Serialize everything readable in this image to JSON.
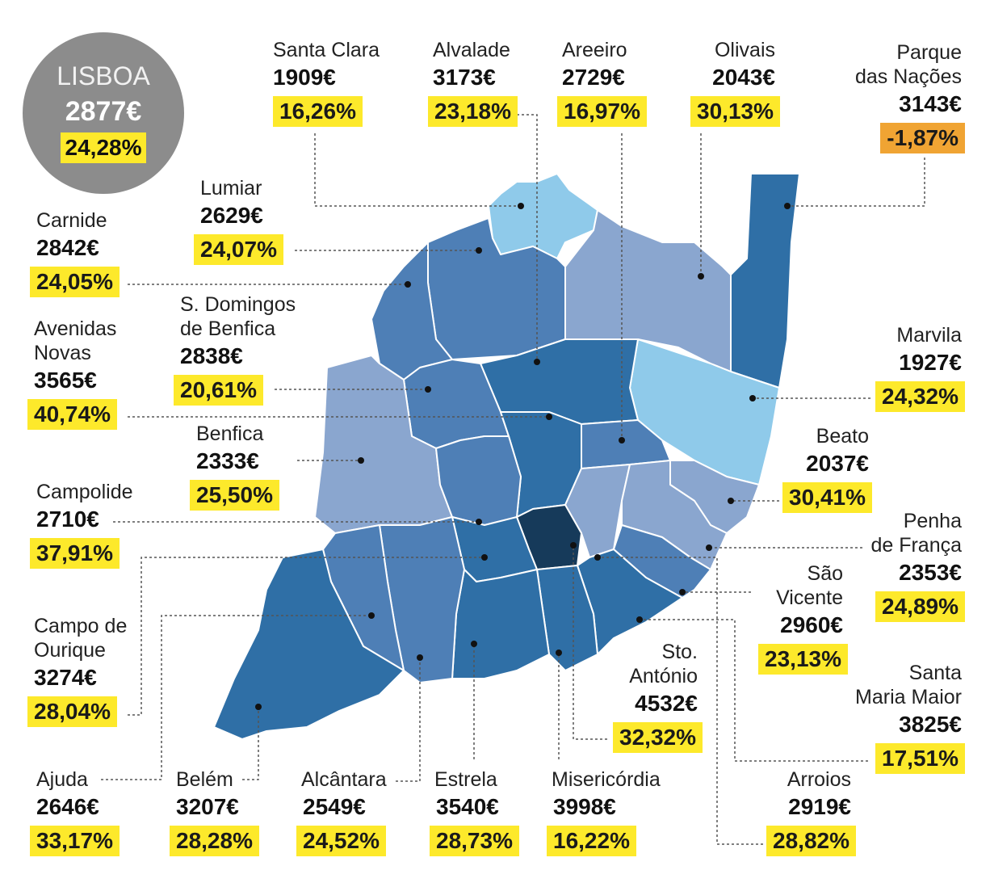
{
  "city": {
    "name": "LISBOA",
    "price": "2877€",
    "change": "24,28%"
  },
  "colors": {
    "darkest": "#163a5a",
    "dark": "#2f6fa6",
    "mid": "#4e7fb6",
    "light_mid": "#8aa6cf",
    "light": "#8fcaea",
    "highlight": "#fde92b",
    "negative": "#f0a433",
    "border": "#ffffff"
  },
  "parishes": [
    {
      "id": "santa-clara",
      "name": "Santa Clara",
      "price": "1909€",
      "change": "16,26%"
    },
    {
      "id": "alvalade",
      "name": "Alvalade",
      "price": "3173€",
      "change": "23,18%"
    },
    {
      "id": "areeiro",
      "name": "Areeiro",
      "price": "2729€",
      "change": "16,97%"
    },
    {
      "id": "olivais",
      "name": "Olivais",
      "price": "2043€",
      "change": "30,13%"
    },
    {
      "id": "parque-das-nacoes",
      "name": "Parque das Nações",
      "name_lines": [
        "Parque",
        "das Nações"
      ],
      "price": "3143€",
      "change": "-1,87%"
    },
    {
      "id": "lumiar",
      "name": "Lumiar",
      "price": "2629€",
      "change": "24,07%"
    },
    {
      "id": "carnide",
      "name": "Carnide",
      "price": "2842€",
      "change": "24,05%"
    },
    {
      "id": "s-domingos-de-benfica",
      "name": "S. Domingos de Benfica",
      "name_lines": [
        "S. Domingos",
        "de Benfica"
      ],
      "price": "2838€",
      "change": "20,61%"
    },
    {
      "id": "avenidas-novas",
      "name": "Avenidas Novas",
      "name_lines": [
        "Avenidas",
        "Novas"
      ],
      "price": "3565€",
      "change": "40,74%"
    },
    {
      "id": "marvila",
      "name": "Marvila",
      "price": "1927€",
      "change": "24,32%"
    },
    {
      "id": "benfica",
      "name": "Benfica",
      "price": "2333€",
      "change": "25,50%"
    },
    {
      "id": "beato",
      "name": "Beato",
      "price": "2037€",
      "change": "30,41%"
    },
    {
      "id": "campolide",
      "name": "Campolide",
      "price": "2710€",
      "change": "37,91%"
    },
    {
      "id": "penha-de-franca",
      "name": "Penha de França",
      "name_lines": [
        "Penha",
        "de França"
      ],
      "price": "2353€",
      "change": "24,89%"
    },
    {
      "id": "sao-vicente",
      "name": "São Vicente",
      "name_lines": [
        "São",
        "Vicente"
      ],
      "price": "2960€",
      "change": "23,13%"
    },
    {
      "id": "campo-de-ourique",
      "name": "Campo de Ourique",
      "name_lines": [
        "Campo de",
        "Ourique"
      ],
      "price": "3274€",
      "change": "28,04%"
    },
    {
      "id": "santo-antonio",
      "name": "Sto. António",
      "name_lines": [
        "Sto.",
        "António"
      ],
      "price": "4532€",
      "change": "32,32%"
    },
    {
      "id": "santa-maria-maior",
      "name": "Santa Maria Maior",
      "name_lines": [
        "Santa",
        "Maria Maior"
      ],
      "price": "3825€",
      "change": "17,51%"
    },
    {
      "id": "ajuda",
      "name": "Ajuda",
      "price": "2646€",
      "change": "33,17%"
    },
    {
      "id": "belem",
      "name": "Belém",
      "price": "3207€",
      "change": "28,28%"
    },
    {
      "id": "alcantara",
      "name": "Alcântara",
      "price": "2549€",
      "change": "24,52%"
    },
    {
      "id": "estrela",
      "name": "Estrela",
      "price": "3540€",
      "change": "28,73%"
    },
    {
      "id": "misericordia",
      "name": "Misericórdia",
      "price": "3998€",
      "change": "16,22%"
    },
    {
      "id": "arroios",
      "name": "Arroios",
      "price": "2919€",
      "change": "28,82%"
    }
  ]
}
